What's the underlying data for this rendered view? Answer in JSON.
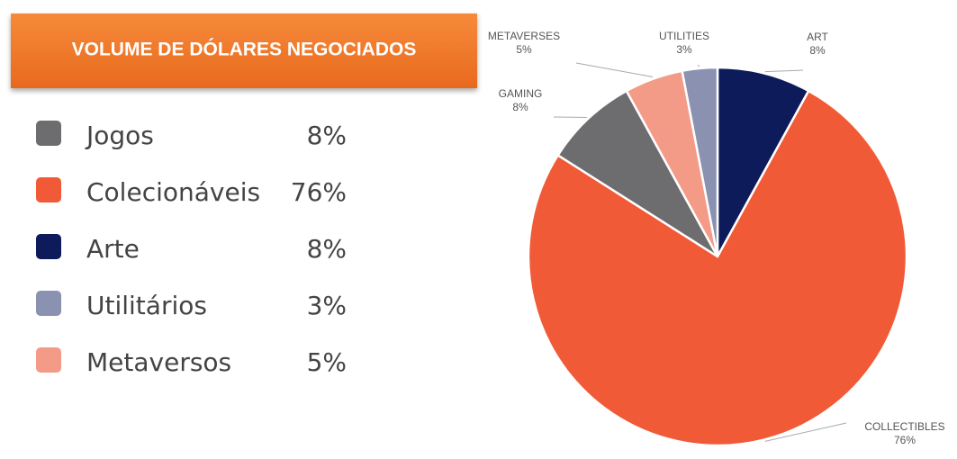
{
  "chart_data": {
    "type": "pie",
    "title": "VOLUME DE DÓLARES NEGOCIADOS",
    "categories": [
      "ART",
      "COLLECTIBLES",
      "GAMING",
      "METAVERSES",
      "UTILITIES"
    ],
    "values": [
      8,
      76,
      8,
      5,
      3
    ],
    "value_labels": [
      "8%",
      "76%",
      "8%",
      "5%",
      "3%"
    ],
    "colors": [
      "#0d1b5a",
      "#f15a37",
      "#6d6d6f",
      "#f49b88",
      "#8b91b0"
    ],
    "legend": [
      {
        "label": "Jogos",
        "value": 8,
        "value_label": "8%",
        "color": "#6d6d6f"
      },
      {
        "label": "Colecionáveis",
        "value": 76,
        "value_label": "76%",
        "color": "#f15a37"
      },
      {
        "label": "Arte",
        "value": 8,
        "value_label": "8%",
        "color": "#0d1b5a"
      },
      {
        "label": "Utilitários",
        "value": 3,
        "value_label": "3%",
        "color": "#8b91b0"
      },
      {
        "label": "Metaversos",
        "value": 5,
        "value_label": "5%",
        "color": "#f49b88"
      }
    ]
  }
}
